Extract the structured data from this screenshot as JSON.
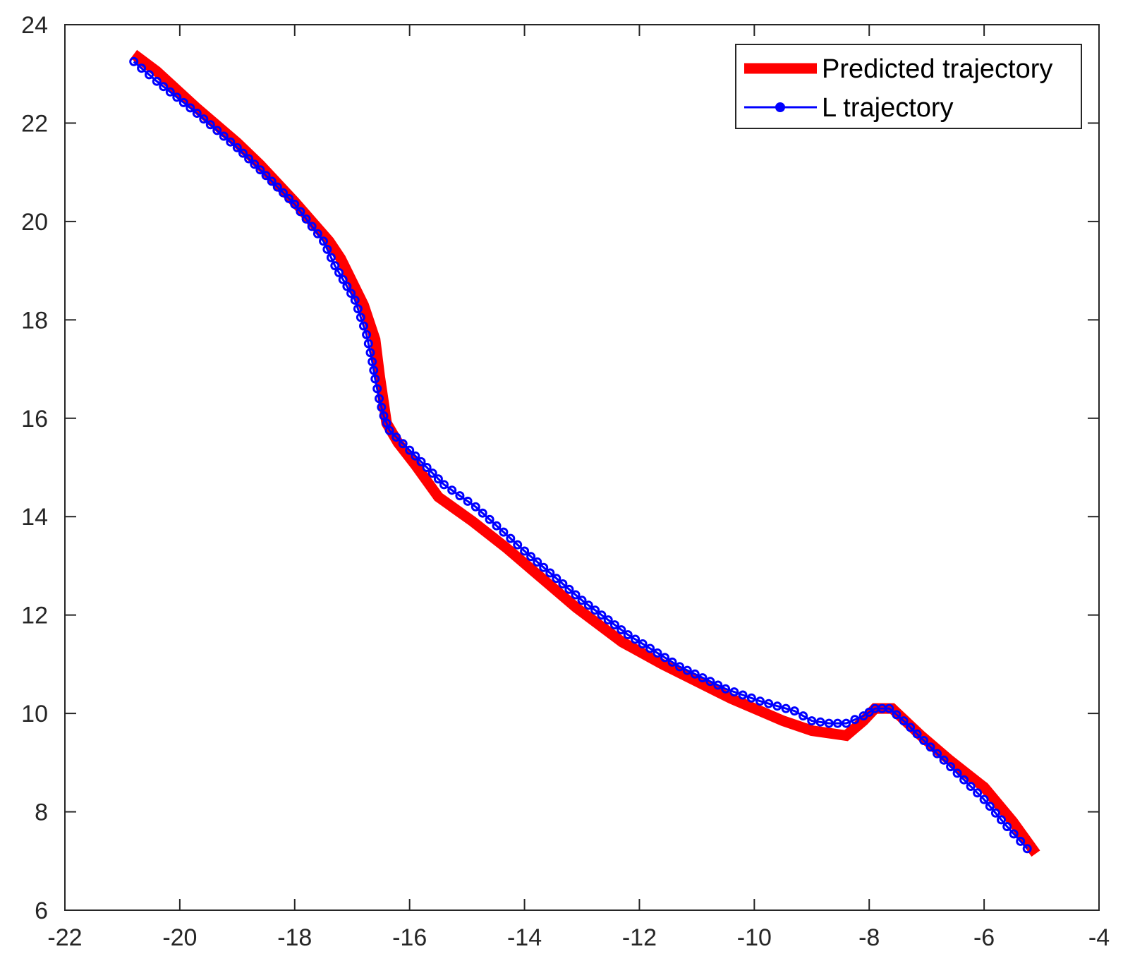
{
  "chart_data": {
    "type": "line",
    "title": "",
    "xlabel": "",
    "ylabel": "",
    "xlim": [
      -22,
      -4
    ],
    "ylim": [
      6,
      24
    ],
    "xticks": [
      -22,
      -20,
      -18,
      -16,
      -14,
      -12,
      -10,
      -8,
      -6,
      -4
    ],
    "yticks": [
      6,
      8,
      10,
      12,
      14,
      16,
      18,
      20,
      22,
      24
    ],
    "grid": false,
    "box": true,
    "legend": {
      "placement": "top-right"
    },
    "series": [
      {
        "name": "Predicted trajectory",
        "color": "#ff0000",
        "style": "thick-line",
        "x": [
          -20.8,
          -20.4,
          -19.7,
          -19.0,
          -18.6,
          -18.0,
          -17.4,
          -17.2,
          -16.8,
          -16.6,
          -16.52,
          -16.45,
          -16.4,
          -16.2,
          -15.9,
          -15.5,
          -14.9,
          -14.3,
          -13.8,
          -13.1,
          -12.3,
          -11.6,
          -11.0,
          -10.4,
          -9.9,
          -9.5,
          -9.0,
          -8.4,
          -8.1,
          -7.9,
          -7.6,
          -7.1,
          -6.6,
          -6.0,
          -5.5,
          -5.1
        ],
        "y": [
          23.4,
          23.05,
          22.3,
          21.6,
          21.15,
          20.4,
          19.6,
          19.25,
          18.3,
          17.6,
          16.85,
          16.3,
          15.9,
          15.5,
          15.05,
          14.4,
          13.9,
          13.35,
          12.85,
          12.15,
          11.45,
          11.0,
          10.65,
          10.3,
          10.05,
          9.85,
          9.65,
          9.55,
          9.85,
          10.1,
          10.1,
          9.55,
          9.05,
          8.5,
          7.8,
          7.15
        ]
      },
      {
        "name": "L trajectory",
        "color": "#0000ff",
        "style": "line-with-circle-markers",
        "x": [
          -20.8,
          -20.4,
          -19.7,
          -19.0,
          -18.6,
          -18.0,
          -17.5,
          -17.3,
          -16.95,
          -16.75,
          -16.65,
          -16.6,
          -16.53,
          -16.45,
          -16.35,
          -16.0,
          -15.4,
          -14.85,
          -14.0,
          -13.0,
          -12.2,
          -11.3,
          -10.5,
          -9.9,
          -9.3,
          -9.0,
          -8.7,
          -8.4,
          -8.1,
          -7.9,
          -7.65,
          -7.4,
          -6.7,
          -6.0,
          -5.6,
          -5.25
        ],
        "y": [
          23.25,
          22.85,
          22.2,
          21.5,
          21.05,
          20.35,
          19.6,
          19.1,
          18.4,
          17.7,
          17.15,
          16.8,
          16.4,
          16.05,
          15.75,
          15.35,
          14.65,
          14.2,
          13.3,
          12.3,
          11.6,
          10.95,
          10.5,
          10.25,
          10.05,
          9.85,
          9.8,
          9.8,
          9.95,
          10.1,
          10.1,
          9.85,
          9.05,
          8.25,
          7.7,
          7.25
        ]
      }
    ]
  }
}
